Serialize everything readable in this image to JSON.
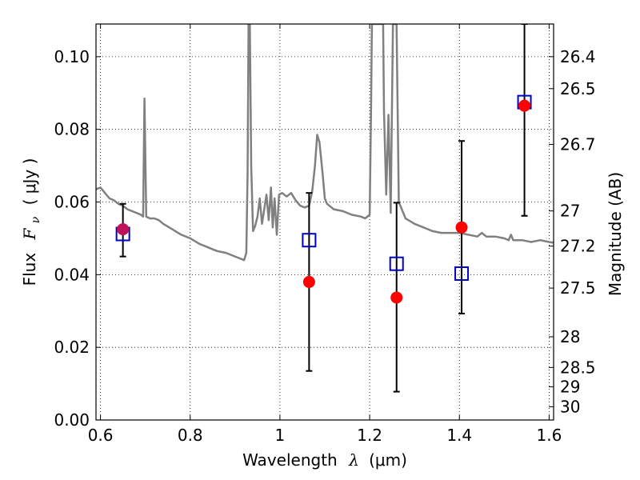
{
  "chart_data": {
    "type": "scatter",
    "xlabel": {
      "prefix": "Wavelength",
      "symbol": "λ",
      "unit": "(μm)"
    },
    "ylabel": {
      "prefix": "Flux",
      "symbol": "F",
      "sub": "ν",
      "unit": "( μJy )"
    },
    "y2label": "Magnitude (AB)",
    "xlim": [
      0.59,
      1.61
    ],
    "ylim": [
      0.0,
      0.109
    ],
    "grid": true,
    "x_ticks": [
      {
        "value": 0.6,
        "label": "0.6"
      },
      {
        "value": 0.8,
        "label": "0.8"
      },
      {
        "value": 1.0,
        "label": "1"
      },
      {
        "value": 1.2,
        "label": "1.2"
      },
      {
        "value": 1.4,
        "label": "1.4"
      },
      {
        "value": 1.6,
        "label": "1.6"
      }
    ],
    "y_ticks": [
      {
        "value": 0.0,
        "label": "0.00"
      },
      {
        "value": 0.02,
        "label": "0.02"
      },
      {
        "value": 0.04,
        "label": "0.04"
      },
      {
        "value": 0.06,
        "label": "0.06"
      },
      {
        "value": 0.08,
        "label": "0.08"
      },
      {
        "value": 0.1,
        "label": "0.10"
      }
    ],
    "y2_ticks": [
      {
        "value": 26.4,
        "label": "26.4"
      },
      {
        "value": 26.5,
        "label": "26.5"
      },
      {
        "value": 26.7,
        "label": "26.7"
      },
      {
        "value": 27.0,
        "label": "27"
      },
      {
        "value": 27.2,
        "label": "27.2"
      },
      {
        "value": 27.5,
        "label": "27.5"
      },
      {
        "value": 28.0,
        "label": "28"
      },
      {
        "value": 28.5,
        "label": "28.5"
      },
      {
        "value": 29.0,
        "label": "29"
      },
      {
        "value": 30.0,
        "label": "30"
      }
    ],
    "observed": {
      "color": "#ff0000",
      "points": [
        {
          "x": 0.65,
          "y": 0.0525,
          "ylo": 0.045,
          "yhi": 0.0595
        },
        {
          "x": 1.065,
          "y": 0.038,
          "ylo": 0.0135,
          "yhi": 0.0625
        },
        {
          "x": 1.26,
          "y": 0.0337,
          "ylo": 0.0078,
          "yhi": 0.0598
        },
        {
          "x": 1.405,
          "y": 0.053,
          "ylo": 0.0293,
          "yhi": 0.0768
        },
        {
          "x": 1.545,
          "y": 0.0865,
          "ylo": 0.0562,
          "yhi": 0.109
        }
      ]
    },
    "model": {
      "color": "#0000cc",
      "points": [
        {
          "x": 0.65,
          "y": 0.0512
        },
        {
          "x": 1.065,
          "y": 0.0495
        },
        {
          "x": 1.26,
          "y": 0.043
        },
        {
          "x": 1.405,
          "y": 0.0403
        },
        {
          "x": 1.545,
          "y": 0.0875
        }
      ]
    },
    "spectrum": {
      "color": "#808080",
      "points": [
        [
          0.59,
          0.0635
        ],
        [
          0.6,
          0.064
        ],
        [
          0.61,
          0.0625
        ],
        [
          0.62,
          0.061
        ],
        [
          0.63,
          0.0605
        ],
        [
          0.64,
          0.0595
        ],
        [
          0.65,
          0.059
        ],
        [
          0.66,
          0.058
        ],
        [
          0.67,
          0.0575
        ],
        [
          0.68,
          0.057
        ],
        [
          0.69,
          0.0565
        ],
        [
          0.695,
          0.056
        ],
        [
          0.698,
          0.0885
        ],
        [
          0.702,
          0.056
        ],
        [
          0.71,
          0.0555
        ],
        [
          0.72,
          0.0555
        ],
        [
          0.73,
          0.055
        ],
        [
          0.74,
          0.054
        ],
        [
          0.76,
          0.0525
        ],
        [
          0.78,
          0.051
        ],
        [
          0.8,
          0.05
        ],
        [
          0.82,
          0.0485
        ],
        [
          0.84,
          0.0475
        ],
        [
          0.86,
          0.0465
        ],
        [
          0.88,
          0.046
        ],
        [
          0.9,
          0.045
        ],
        [
          0.91,
          0.0445
        ],
        [
          0.92,
          0.044
        ],
        [
          0.925,
          0.046
        ],
        [
          0.928,
          0.068
        ],
        [
          0.93,
          0.109
        ],
        [
          0.933,
          0.109
        ],
        [
          0.936,
          0.07
        ],
        [
          0.94,
          0.052
        ],
        [
          0.945,
          0.0535
        ],
        [
          0.95,
          0.056
        ],
        [
          0.955,
          0.061
        ],
        [
          0.96,
          0.054
        ],
        [
          0.965,
          0.058
        ],
        [
          0.97,
          0.062
        ],
        [
          0.975,
          0.055
        ],
        [
          0.98,
          0.064
        ],
        [
          0.984,
          0.053
        ],
        [
          0.988,
          0.061
        ],
        [
          0.993,
          0.051
        ],
        [
          0.998,
          0.062
        ],
        [
          1.005,
          0.0625
        ],
        [
          1.015,
          0.0615
        ],
        [
          1.025,
          0.0625
        ],
        [
          1.035,
          0.0605
        ],
        [
          1.045,
          0.059
        ],
        [
          1.055,
          0.0585
        ],
        [
          1.065,
          0.059
        ],
        [
          1.072,
          0.063
        ],
        [
          1.078,
          0.07
        ],
        [
          1.083,
          0.0785
        ],
        [
          1.088,
          0.0765
        ],
        [
          1.095,
          0.068
        ],
        [
          1.1,
          0.061
        ],
        [
          1.105,
          0.0595
        ],
        [
          1.12,
          0.058
        ],
        [
          1.14,
          0.0575
        ],
        [
          1.16,
          0.0565
        ],
        [
          1.18,
          0.056
        ],
        [
          1.19,
          0.0555
        ],
        [
          1.2,
          0.0565
        ],
        [
          1.203,
          0.085
        ],
        [
          1.205,
          0.109
        ],
        [
          1.23,
          0.109
        ],
        [
          1.232,
          0.085
        ],
        [
          1.237,
          0.062
        ],
        [
          1.242,
          0.084
        ],
        [
          1.247,
          0.057
        ],
        [
          1.252,
          0.109
        ],
        [
          1.26,
          0.109
        ],
        [
          1.265,
          0.06
        ],
        [
          1.28,
          0.0555
        ],
        [
          1.3,
          0.054
        ],
        [
          1.32,
          0.053
        ],
        [
          1.34,
          0.052
        ],
        [
          1.36,
          0.0515
        ],
        [
          1.38,
          0.0515
        ],
        [
          1.4,
          0.0515
        ],
        [
          1.42,
          0.051
        ],
        [
          1.44,
          0.0505
        ],
        [
          1.45,
          0.0515
        ],
        [
          1.46,
          0.0505
        ],
        [
          1.48,
          0.0505
        ],
        [
          1.5,
          0.05
        ],
        [
          1.51,
          0.0495
        ],
        [
          1.515,
          0.051
        ],
        [
          1.52,
          0.0495
        ],
        [
          1.54,
          0.0495
        ],
        [
          1.56,
          0.049
        ],
        [
          1.58,
          0.0495
        ],
        [
          1.6,
          0.049
        ],
        [
          1.61,
          0.0488
        ]
      ]
    }
  }
}
